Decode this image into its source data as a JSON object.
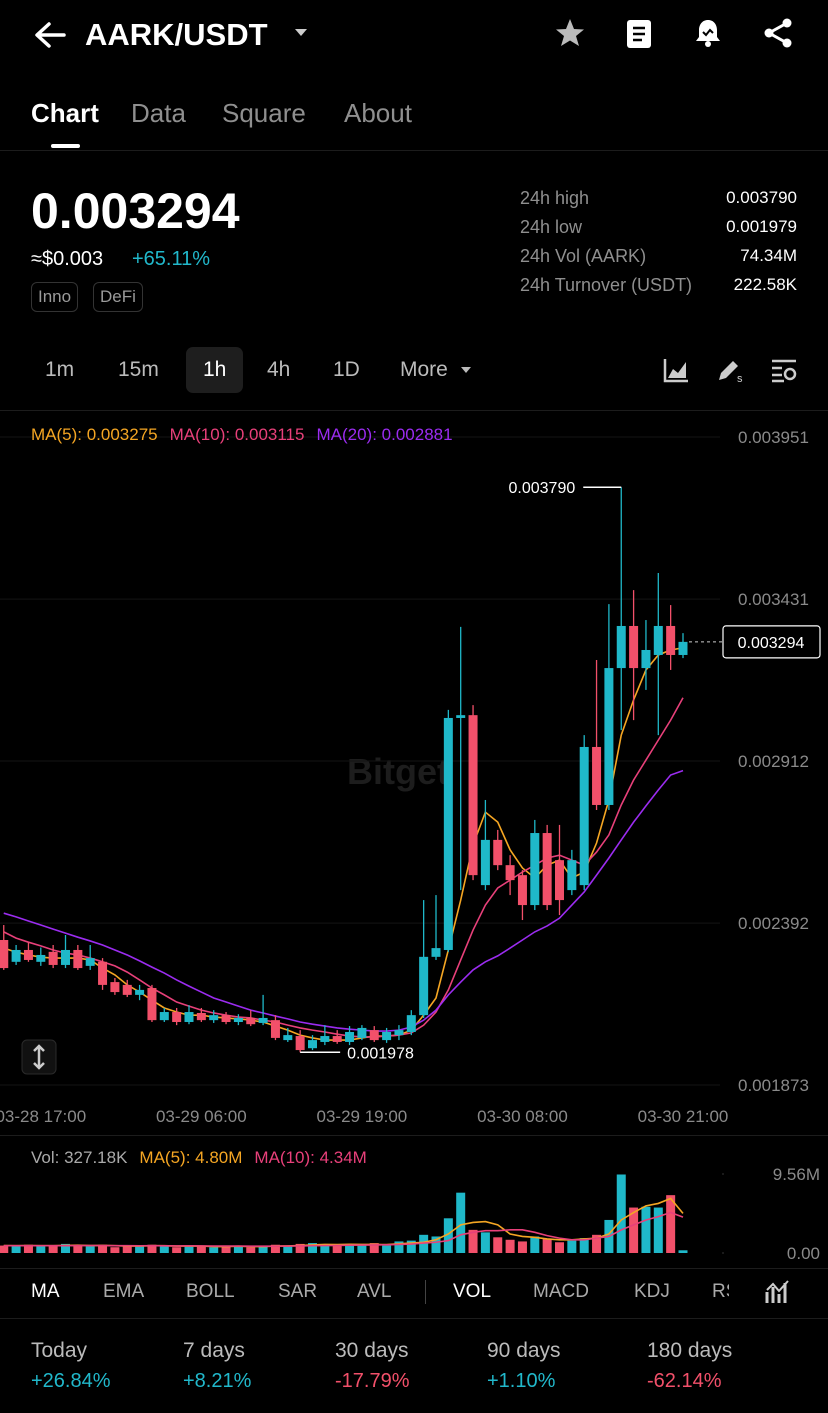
{
  "header": {
    "pair": "AARK/USDT"
  },
  "tabs": [
    "Chart",
    "Data",
    "Square",
    "About"
  ],
  "ticker": {
    "price": "0.003294",
    "usd": "≈$0.003",
    "change": "+65.11%",
    "tags": [
      "Inno",
      "DeFi"
    ],
    "stats": [
      {
        "label": "24h high",
        "value": "0.003790"
      },
      {
        "label": "24h low",
        "value": "0.001979"
      },
      {
        "label": "24h Vol (AARK)",
        "value": "74.34M"
      },
      {
        "label": "24h Turnover (USDT)",
        "value": "222.58K"
      }
    ]
  },
  "intervals": [
    "1m",
    "15m",
    "1h",
    "4h",
    "1D",
    "More"
  ],
  "watermark": "Bitget",
  "chart_data": [
    {
      "type": "candlestick",
      "x": [
        null,
        null,
        null,
        "03-28 17:00",
        null,
        null,
        null,
        null,
        null,
        null,
        null,
        null,
        null,
        null,
        null,
        null,
        "03-29 06:00",
        null,
        null,
        null,
        null,
        null,
        null,
        null,
        null,
        null,
        null,
        null,
        null,
        "03-29 19:00",
        null,
        null,
        null,
        null,
        null,
        null,
        null,
        null,
        null,
        null,
        null,
        null,
        "03-30 08:00",
        null,
        null,
        null,
        null,
        null,
        null,
        null,
        null,
        null,
        null,
        null,
        null,
        "03-30 21:00"
      ],
      "open": [
        0.002338,
        0.002268,
        0.002306,
        0.002268,
        0.0023,
        0.002258,
        0.002306,
        0.002255,
        0.002268,
        0.002203,
        0.002194,
        0.002162,
        0.002184,
        0.002081,
        0.002107,
        0.002075,
        0.002104,
        0.002081,
        0.002097,
        0.002075,
        0.002088,
        0.002072,
        0.002081,
        0.002017,
        0.00203,
        0.001991,
        0.002011,
        0.00203,
        0.002011,
        0.002024,
        0.002049,
        0.002017,
        0.002033,
        0.002043,
        0.002097,
        0.002284,
        0.002306,
        0.00305,
        0.003059,
        0.002514,
        0.002659,
        0.002578,
        0.002546,
        0.00245,
        0.002681,
        0.002594,
        0.002498,
        0.002514,
        0.002957,
        0.002771,
        0.00321,
        0.003345,
        0.00321,
        0.003252,
        0.003345,
        0.003252
      ],
      "high": [
        0.002386,
        0.002322,
        0.00233,
        0.002314,
        0.002322,
        0.002354,
        0.002322,
        0.002322,
        0.00228,
        0.002216,
        0.00221,
        0.002194,
        0.002194,
        0.00212,
        0.00212,
        0.002129,
        0.00212,
        0.002113,
        0.002107,
        0.0021,
        0.002113,
        0.002162,
        0.002097,
        0.002056,
        0.002049,
        0.002033,
        0.002065,
        0.002049,
        0.002062,
        0.002065,
        0.002062,
        0.002056,
        0.002065,
        0.002113,
        0.002466,
        0.002482,
        0.003076,
        0.003342,
        0.003091,
        0.002787,
        0.002691,
        0.00261,
        0.002562,
        0.002723,
        0.002707,
        0.002707,
        0.002627,
        0.002995,
        0.003236,
        0.003415,
        0.00379,
        0.00346,
        0.003364,
        0.003515,
        0.003412,
        0.003322
      ],
      "low": [
        0.002242,
        0.002258,
        0.002268,
        0.002255,
        0.002248,
        0.002248,
        0.002242,
        0.002242,
        0.002178,
        0.002162,
        0.002155,
        0.002145,
        0.002075,
        0.002075,
        0.002065,
        0.002068,
        0.002075,
        0.002072,
        0.002068,
        0.002065,
        0.002062,
        0.002065,
        0.002017,
        0.002011,
        0.001978,
        0.001985,
        0.002001,
        0.002005,
        0.002001,
        0.002017,
        0.002011,
        0.002008,
        0.002017,
        0.002033,
        0.002088,
        0.002274,
        0.0023,
        0.002498,
        0.00253,
        0.002498,
        0.002562,
        0.002482,
        0.002402,
        0.002434,
        0.002434,
        0.002418,
        0.002482,
        0.002498,
        0.002755,
        0.002755,
        0.003011,
        0.003043,
        0.00314,
        0.002995,
        0.003204,
        0.003242
      ],
      "close": [
        0.002248,
        0.002306,
        0.002274,
        0.00229,
        0.002258,
        0.002306,
        0.002248,
        0.00228,
        0.002194,
        0.002171,
        0.002162,
        0.002178,
        0.002081,
        0.002107,
        0.002075,
        0.002107,
        0.002081,
        0.002097,
        0.002075,
        0.002088,
        0.002068,
        0.002088,
        0.002024,
        0.002033,
        0.001985,
        0.002017,
        0.00203,
        0.002011,
        0.002043,
        0.002056,
        0.002017,
        0.002043,
        0.002049,
        0.002097,
        0.002284,
        0.002312,
        0.00305,
        0.003059,
        0.002546,
        0.002659,
        0.002578,
        0.00253,
        0.00245,
        0.002681,
        0.00245,
        0.002466,
        0.002594,
        0.002957,
        0.002771,
        0.00321,
        0.003345,
        0.00321,
        0.003268,
        0.003345,
        0.003252,
        0.003294
      ],
      "up_color": "#1fb8c9",
      "down_color": "#f2506a",
      "series": [
        {
          "name": "MA(5): 0.003275",
          "color": "#f5a623",
          "values": [
            0.002312,
            0.002299,
            0.00229,
            0.002283,
            0.00228,
            0.00228,
            0.00228,
            0.002274,
            0.002248,
            0.002226,
            0.002194,
            0.002171,
            0.002145,
            0.00212,
            0.002107,
            0.002097,
            0.002097,
            0.002091,
            0.002088,
            0.002085,
            0.002081,
            0.002075,
            0.002062,
            0.002049,
            0.002033,
            0.002024,
            0.002017,
            0.002017,
            0.002017,
            0.002024,
            0.00203,
            0.00203,
            0.002033,
            0.002049,
            0.002097,
            0.002152,
            0.002306,
            0.002466,
            0.002643,
            0.002748,
            0.002716,
            0.002627,
            0.002569,
            0.002537,
            0.002578,
            0.002594,
            0.002537,
            0.002556,
            0.002649,
            0.002787,
            0.002995,
            0.003108,
            0.003204,
            0.003252,
            0.003268,
            0.003275
          ]
        },
        {
          "name": "MA(10): 0.003115",
          "color": "#e8407a",
          "values": [
            0.002364,
            0.002344,
            0.002331,
            0.002319,
            0.002306,
            0.002296,
            0.00229,
            0.00228,
            0.002268,
            0.002255,
            0.002235,
            0.00221,
            0.002184,
            0.002162,
            0.002139,
            0.002126,
            0.002113,
            0.002104,
            0.002097,
            0.002091,
            0.002088,
            0.002081,
            0.002075,
            0.002065,
            0.002056,
            0.002049,
            0.002043,
            0.002036,
            0.00203,
            0.002027,
            0.002027,
            0.00203,
            0.002033,
            0.00204,
            0.002065,
            0.002107,
            0.002178,
            0.002274,
            0.00237,
            0.00245,
            0.002505,
            0.00253,
            0.002556,
            0.002578,
            0.002601,
            0.00261,
            0.002594,
            0.002578,
            0.00262,
            0.002675,
            0.002771,
            0.002851,
            0.002915,
            0.002979,
            0.003043,
            0.003115
          ]
        },
        {
          "name": "MA(20): 0.002881",
          "color": "#9b2cf0",
          "values": [
            0.002424,
            0.002412,
            0.002399,
            0.002386,
            0.002373,
            0.00236,
            0.002347,
            0.002335,
            0.002322,
            0.002306,
            0.00229,
            0.002271,
            0.002251,
            0.002232,
            0.00221,
            0.00219,
            0.002171,
            0.002152,
            0.002139,
            0.002126,
            0.002113,
            0.002104,
            0.002094,
            0.002085,
            0.002075,
            0.002068,
            0.002062,
            0.002056,
            0.002052,
            0.002049,
            0.002046,
            0.002046,
            0.002049,
            0.002059,
            0.002081,
            0.002113,
            0.002162,
            0.002203,
            0.002242,
            0.002268,
            0.002287,
            0.002312,
            0.002338,
            0.002364,
            0.002383,
            0.002408,
            0.00245,
            0.002492,
            0.002546,
            0.002601,
            0.002659,
            0.002716,
            0.002768,
            0.002819,
            0.002867,
            0.002881
          ]
        }
      ],
      "ylim": [
        0.001873,
        0.003951
      ],
      "yticks": [
        0.003951,
        0.003431,
        0.002912,
        0.002392,
        0.001873
      ],
      "grid": true,
      "annotations": [
        {
          "value": 0.00379,
          "label": "0.003790"
        },
        {
          "value": 0.001978,
          "label": "0.001978"
        }
      ],
      "last_price": {
        "value": 0.003294,
        "label": "0.003294"
      }
    },
    {
      "type": "bar",
      "name": "Vol: 327.18K",
      "values": [
        900000,
        800000,
        1000000,
        900000,
        800000,
        1100000,
        900000,
        800000,
        1000000,
        700000,
        800000,
        900000,
        1000000,
        800000,
        700000,
        900000,
        800000,
        700000,
        800000,
        900000,
        700000,
        800000,
        1000000,
        900000,
        1100000,
        1200000,
        1000000,
        900000,
        1100000,
        1000000,
        1200000,
        900000,
        1400000,
        1500000,
        2200000,
        2000000,
        4200000,
        7300000,
        2800000,
        2500000,
        1900000,
        1600000,
        1400000,
        2000000,
        1700000,
        1300000,
        1500000,
        1800000,
        2200000,
        4000000,
        9500000,
        5500000,
        5600000,
        5500000,
        7000000,
        327180
      ],
      "series": [
        {
          "name": "MA(5): 4.80M",
          "color": "#f5a623",
          "values": [
            900000,
            880000,
            900000,
            880000,
            880000,
            920000,
            940000,
            900000,
            920000,
            880000,
            840000,
            840000,
            880000,
            880000,
            840000,
            860000,
            840000,
            780000,
            780000,
            820000,
            780000,
            780000,
            840000,
            860000,
            900000,
            980000,
            1040000,
            1020000,
            1060000,
            1040000,
            1040000,
            1020000,
            1120000,
            1200000,
            1300000,
            1600000,
            2300000,
            3400000,
            3700000,
            3800000,
            3400000,
            2300000,
            2000000,
            1900000,
            1700000,
            1600000,
            1600000,
            1700000,
            1800000,
            2300000,
            4000000,
            4900000,
            5700000,
            6000000,
            6600000,
            4800000
          ]
        },
        {
          "name": "MA(10): 4.34M",
          "color": "#e8407a",
          "values": [
            880000,
            880000,
            890000,
            890000,
            880000,
            890000,
            900000,
            900000,
            900000,
            890000,
            880000,
            870000,
            880000,
            870000,
            860000,
            870000,
            860000,
            840000,
            840000,
            840000,
            820000,
            820000,
            830000,
            840000,
            860000,
            880000,
            900000,
            920000,
            940000,
            960000,
            980000,
            990000,
            1040000,
            1080000,
            1200000,
            1300000,
            1500000,
            2200000,
            2500000,
            2700000,
            2700000,
            2800000,
            2800000,
            2500000,
            2100000,
            1800000,
            1600000,
            1600000,
            1800000,
            2000000,
            2800000,
            3400000,
            4000000,
            4400000,
            4900000,
            4340000
          ]
        }
      ],
      "ylim": [
        0,
        9560000
      ],
      "yticks": [
        {
          "value": 0,
          "label": "0.00"
        },
        {
          "value": 9560000,
          "label": "9.56M"
        }
      ]
    }
  ],
  "indicators": [
    "MA",
    "EMA",
    "BOLL",
    "SAR",
    "AVL",
    "VOL",
    "MACD",
    "KDJ",
    "RSI"
  ],
  "performance": [
    {
      "label": "Today",
      "value": "+26.84%"
    },
    {
      "label": "7 days",
      "value": "+8.21%"
    },
    {
      "label": "30 days",
      "value": "-17.79%"
    },
    {
      "label": "90 days",
      "value": "+1.10%"
    },
    {
      "label": "180 days",
      "value": "-62.14%"
    }
  ]
}
